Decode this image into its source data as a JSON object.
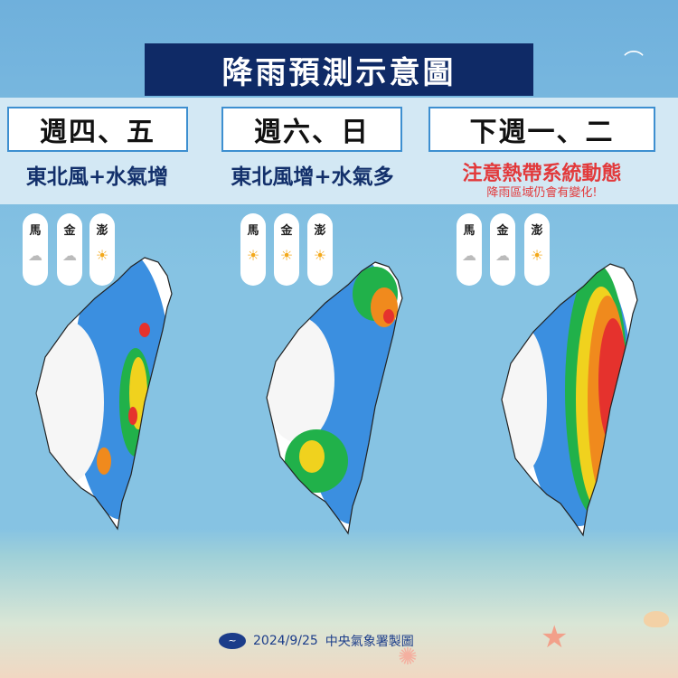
{
  "title": "降雨預測示意圖",
  "panels": [
    {
      "heading": "週四、五",
      "subtitle": "東北風+水氣增",
      "note": "",
      "islands": [
        {
          "name": "馬",
          "icon": "rain-cloud-icon"
        },
        {
          "name": "金",
          "icon": "rain-cloud-icon"
        },
        {
          "name": "澎",
          "icon": "sun-rain-cloud-icon"
        }
      ]
    },
    {
      "heading": "週六、日",
      "subtitle": "東北風增+水氣多",
      "note": "",
      "islands": [
        {
          "name": "馬",
          "icon": "sun-cloud-icon"
        },
        {
          "name": "金",
          "icon": "sun-cloud-icon"
        },
        {
          "name": "澎",
          "icon": "sun-cloud-icon"
        }
      ]
    },
    {
      "heading": "下週一、二",
      "subtitle": "注意熱帶系統動態",
      "note": "降雨區域仍會有變化!",
      "islands": [
        {
          "name": "馬",
          "icon": "cloud-icon"
        },
        {
          "name": "金",
          "icon": "cloud-icon"
        },
        {
          "name": "澎",
          "icon": "sun-rain-cloud-icon"
        }
      ]
    }
  ],
  "footer": {
    "date": "2024/9/25",
    "agency": "中央氣象署製圖"
  },
  "colors": {
    "banner": "#0f2a66",
    "accent_red": "#e2393b",
    "heading_border": "#3d8fd0"
  }
}
